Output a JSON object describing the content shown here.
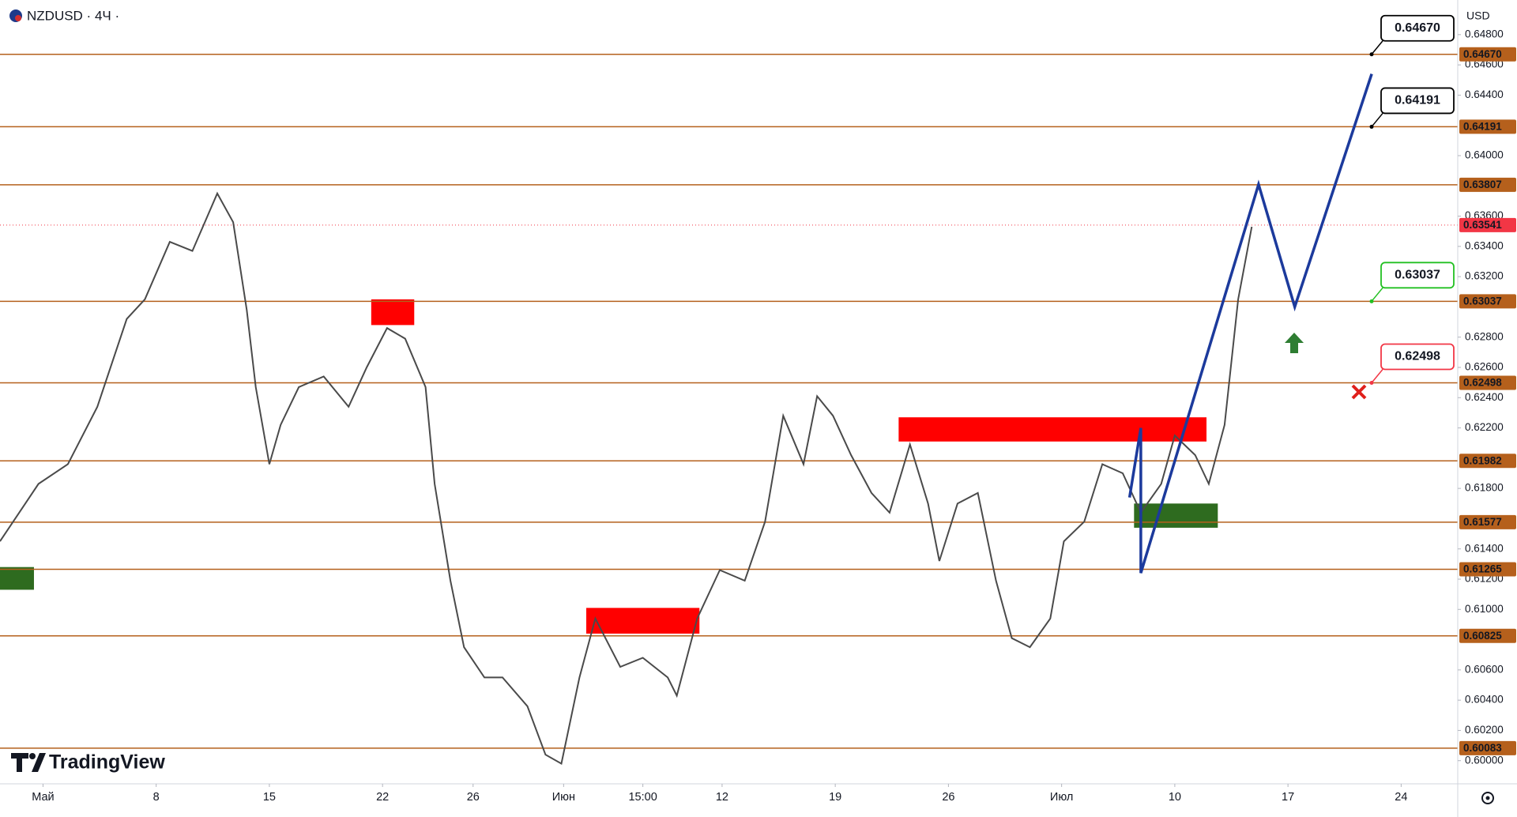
{
  "chart_data": {
    "type": "line",
    "title": "NZDUSD · 4Ч ·",
    "currency": "USD",
    "brand": "TradingView",
    "xlim": [
      0,
      64.4
    ],
    "xticks": [
      {
        "value": 1.9,
        "label": "Май"
      },
      {
        "value": 6.9,
        "label": "8"
      },
      {
        "value": 11.9,
        "label": "15"
      },
      {
        "value": 16.9,
        "label": "22"
      },
      {
        "value": 20.9,
        "label": "26"
      },
      {
        "value": 24.9,
        "label": "Июн"
      },
      {
        "value": 28.4,
        "label": "15:00"
      },
      {
        "value": 31.9,
        "label": "12"
      },
      {
        "value": 36.9,
        "label": "19"
      },
      {
        "value": 41.9,
        "label": "26"
      },
      {
        "value": 46.9,
        "label": "Июл"
      },
      {
        "value": 51.9,
        "label": "10"
      },
      {
        "value": 56.9,
        "label": "17"
      },
      {
        "value": 61.9,
        "label": "24"
      }
    ],
    "ylim": [
      0.59847,
      0.65029
    ],
    "yticks": [
      {
        "value": 0.6,
        "label": "0.60000"
      },
      {
        "value": 0.602,
        "label": "0.60200"
      },
      {
        "value": 0.604,
        "label": "0.60400"
      },
      {
        "value": 0.606,
        "label": "0.60600"
      },
      {
        "value": 0.61,
        "label": "0.61000"
      },
      {
        "value": 0.612,
        "label": "0.61200"
      },
      {
        "value": 0.614,
        "label": "0.61400"
      },
      {
        "value": 0.618,
        "label": "0.61800"
      },
      {
        "value": 0.622,
        "label": "0.62200"
      },
      {
        "value": 0.624,
        "label": "0.62400"
      },
      {
        "value": 0.626,
        "label": "0.62600"
      },
      {
        "value": 0.628,
        "label": "0.62800"
      },
      {
        "value": 0.632,
        "label": "0.63200"
      },
      {
        "value": 0.634,
        "label": "0.63400"
      },
      {
        "value": 0.636,
        "label": "0.63600"
      },
      {
        "value": 0.64,
        "label": "0.64000"
      },
      {
        "value": 0.644,
        "label": "0.64400"
      },
      {
        "value": 0.646,
        "label": "0.64600"
      },
      {
        "value": 0.648,
        "label": "0.64800"
      }
    ],
    "grid": false,
    "price": {
      "color": "#4a4a4a",
      "x": [
        0,
        1.7,
        3.0,
        4.3,
        5.6,
        6.4,
        7.5,
        8.5,
        9.6,
        10.3,
        10.9,
        11.3,
        11.9,
        12.4,
        13.2,
        14.3,
        15.4,
        16.2,
        17.1,
        17.9,
        18.8,
        19.2,
        19.9,
        20.5,
        21.4,
        22.2,
        23.3,
        24.1,
        24.8,
        25.6,
        26.3,
        27.4,
        28.4,
        29.5,
        29.9,
        30.8,
        31.8,
        32.9,
        33.8,
        34.6,
        35.5,
        36.1,
        36.8,
        37.6,
        38.5,
        39.3,
        40.2,
        41.0,
        41.5,
        42.3,
        43.2,
        44.0,
        44.7,
        45.5,
        46.4,
        47.0,
        47.9,
        48.7,
        49.6,
        50.4,
        51.3,
        51.9,
        52.8,
        53.4,
        54.1,
        54.7,
        55.3
      ],
      "values": [
        0.6145,
        0.6183,
        0.6196,
        0.6234,
        0.6292,
        0.6305,
        0.6343,
        0.6337,
        0.6375,
        0.6356,
        0.6298,
        0.6247,
        0.6196,
        0.6222,
        0.6247,
        0.6254,
        0.6234,
        0.626,
        0.6286,
        0.6279,
        0.6247,
        0.6183,
        0.6119,
        0.6075,
        0.6055,
        0.6055,
        0.6036,
        0.6004,
        0.5998,
        0.6055,
        0.6094,
        0.6062,
        0.6068,
        0.6055,
        0.6043,
        0.6094,
        0.6126,
        0.6119,
        0.6158,
        0.6228,
        0.6196,
        0.6241,
        0.6228,
        0.6202,
        0.6177,
        0.6164,
        0.6209,
        0.617,
        0.6132,
        0.617,
        0.6177,
        0.6119,
        0.6081,
        0.6075,
        0.6094,
        0.6145,
        0.6158,
        0.6196,
        0.619,
        0.6164,
        0.6183,
        0.6215,
        0.6202,
        0.6183,
        0.6222,
        0.6305,
        0.6353
      ]
    },
    "zones": [
      {
        "x0": 16.4,
        "x1": 18.3,
        "low": 0.6288,
        "high": 0.6305,
        "color": "#ff0000"
      },
      {
        "x0": 25.9,
        "x1": 30.9,
        "low": 0.6084,
        "high": 0.6101,
        "color": "#ff0000"
      },
      {
        "x0": 39.7,
        "x1": 53.3,
        "low": 0.6211,
        "high": 0.6227,
        "color": "#ff0000"
      },
      {
        "x0": 0,
        "x1": 1.5,
        "low": 0.6113,
        "high": 0.6128,
        "color": "#2e6b1f"
      },
      {
        "x0": 50.1,
        "x1": 53.8,
        "low": 0.6154,
        "high": 0.617,
        "color": "#2e6b1f"
      }
    ],
    "projection": {
      "color": "#1c3a9c",
      "x": [
        49.9,
        50.4,
        50.4,
        55.6,
        57.2,
        60.6
      ],
      "values": [
        0.6174,
        0.622,
        0.6124,
        0.6381,
        0.63,
        0.6454
      ]
    },
    "levels": {
      "color": "#b5601c",
      "values": [
        0.6467,
        0.64191,
        0.63807,
        0.63037,
        0.62498,
        0.61982,
        0.61577,
        0.61265,
        0.60825,
        0.60083
      ],
      "value_labels": [
        "0.64670",
        "0.64191",
        "0.63807",
        "0.63037",
        "0.62498",
        "0.61982",
        "0.61577",
        "0.61265",
        "0.60825",
        "0.60083"
      ]
    },
    "current_price": {
      "value": 0.63541,
      "label": "0.63541",
      "color": "#f23645"
    },
    "callouts": [
      {
        "value": 0.6467,
        "label": "0.64670",
        "color": "#000000"
      },
      {
        "value": 0.64191,
        "label": "0.64191",
        "color": "#000000"
      },
      {
        "value": 0.63037,
        "label": "0.63037",
        "color": "#22c022"
      },
      {
        "value": 0.62498,
        "label": "0.62498",
        "color": "#f23645"
      }
    ]
  }
}
